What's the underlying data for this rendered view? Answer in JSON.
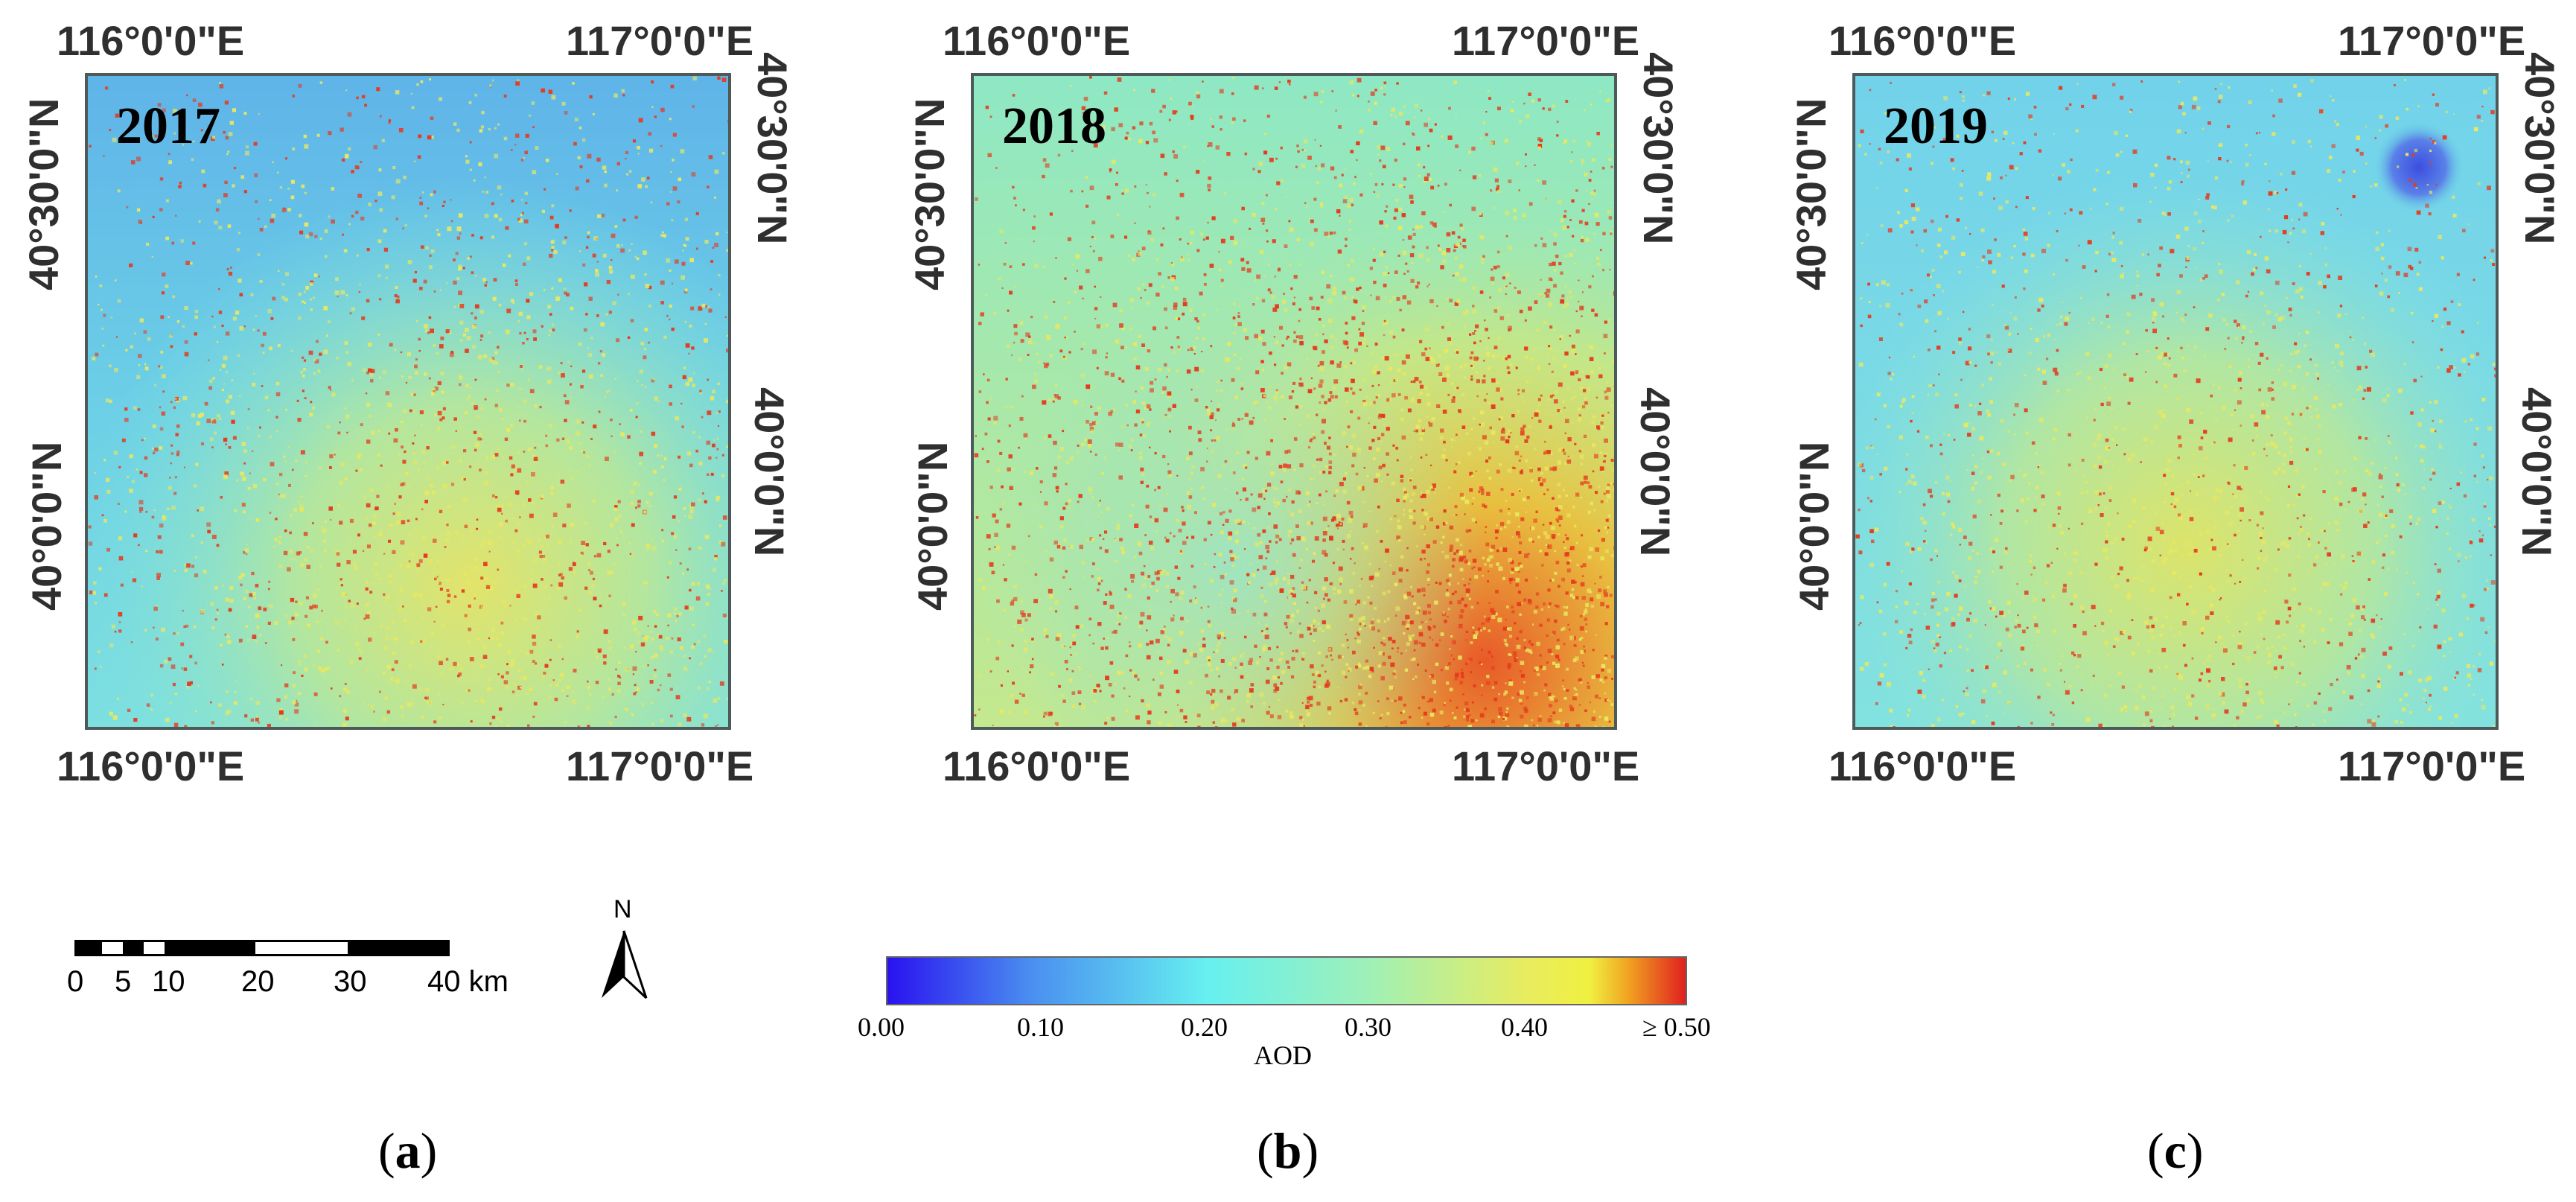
{
  "panels": [
    {
      "year": "2017",
      "caption_letter": "a"
    },
    {
      "year": "2018",
      "caption_letter": "b"
    },
    {
      "year": "2019",
      "caption_letter": "c"
    }
  ],
  "axes": {
    "lon_left": "116°0'0\"E",
    "lon_right": "117°0'0\"E",
    "lat_upper": "40°30'0\"N",
    "lat_lower": "40°0'0\"N"
  },
  "scale_bar": {
    "labels": [
      "0",
      "5",
      "10",
      "20",
      "30",
      "40 km"
    ],
    "unit": "km"
  },
  "north_arrow": {
    "label": "N"
  },
  "colorbar": {
    "title": "AOD",
    "ticks": [
      "0.00",
      "0.10",
      "0.20",
      "0.30",
      "0.40",
      "≥ 0.50"
    ],
    "min": 0.0,
    "max": 0.5,
    "colors": [
      "#2a12f0",
      "#4a8ff0",
      "#66f0f0",
      "#9ef0b8",
      "#f0f040",
      "#f0a020",
      "#e02020"
    ]
  },
  "palette": {
    "low": "#5aaee8",
    "mid_low": "#78e6e6",
    "mid": "#a8e6a0",
    "mid_high": "#e8e860",
    "high": "#e63a1e",
    "very_low": "#3c4ee0"
  }
}
